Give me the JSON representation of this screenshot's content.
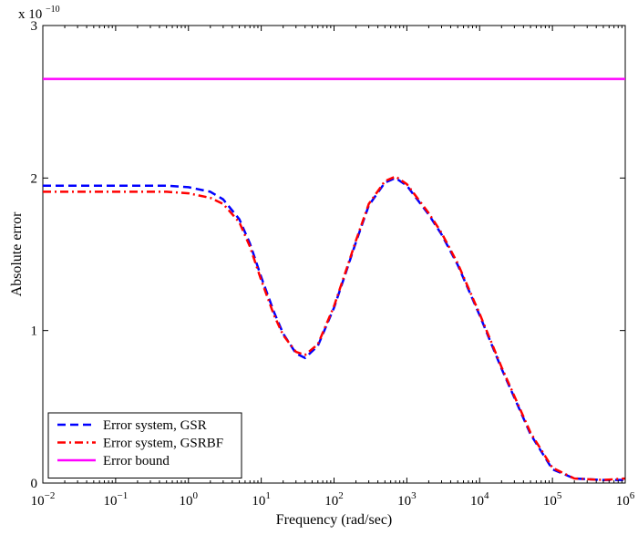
{
  "chart_data": {
    "type": "line",
    "xlabel": "Frequency (rad/sec)",
    "ylabel": "Absolute error",
    "y_multiplier_label": "x 10",
    "y_multiplier_exponent": "−10",
    "xscale": "log",
    "xlim": [
      0.01,
      1000000
    ],
    "ylim": [
      0,
      3
    ],
    "grid": false,
    "legend_position": "bottom-left",
    "x_ticks": [
      {
        "value": 0.01,
        "base": "10",
        "exp": "−2"
      },
      {
        "value": 0.1,
        "base": "10",
        "exp": "−1"
      },
      {
        "value": 1,
        "base": "10",
        "exp": "0"
      },
      {
        "value": 10,
        "base": "10",
        "exp": "1"
      },
      {
        "value": 100,
        "base": "10",
        "exp": "2"
      },
      {
        "value": 1000,
        "base": "10",
        "exp": "3"
      },
      {
        "value": 10000,
        "base": "10",
        "exp": "4"
      },
      {
        "value": 100000,
        "base": "10",
        "exp": "5"
      },
      {
        "value": 1000000,
        "base": "10",
        "exp": "6"
      }
    ],
    "y_ticks": [
      {
        "value": 0,
        "label": "0"
      },
      {
        "value": 1,
        "label": "1"
      },
      {
        "value": 2,
        "label": "2"
      },
      {
        "value": 3,
        "label": "3"
      }
    ],
    "series": [
      {
        "name": "Error system, GSR",
        "color": "#0000ff",
        "style": "dashed",
        "x": [
          0.01,
          0.1,
          0.5,
          1,
          2,
          3,
          5,
          7,
          10,
          15,
          20,
          30,
          40,
          60,
          100,
          150,
          200,
          300,
          500,
          700,
          1000,
          2000,
          3000,
          5000,
          10000,
          20000,
          50000,
          100000,
          200000,
          500000,
          1000000
        ],
        "y": [
          1.95,
          1.95,
          1.95,
          1.94,
          1.91,
          1.86,
          1.73,
          1.57,
          1.35,
          1.12,
          0.98,
          0.85,
          0.82,
          0.9,
          1.15,
          1.4,
          1.58,
          1.82,
          1.97,
          2.0,
          1.95,
          1.76,
          1.63,
          1.43,
          1.1,
          0.75,
          0.32,
          0.09,
          0.03,
          0.02,
          0.02
        ]
      },
      {
        "name": "Error system, GSRBF",
        "color": "#ff0000",
        "style": "dashdot",
        "x": [
          0.01,
          0.1,
          0.5,
          1,
          2,
          3,
          5,
          7,
          10,
          15,
          20,
          30,
          40,
          60,
          100,
          150,
          200,
          300,
          500,
          700,
          1000,
          2000,
          3000,
          5000,
          10000,
          20000,
          50000,
          100000,
          200000,
          500000,
          1000000
        ],
        "y": [
          1.91,
          1.91,
          1.91,
          1.9,
          1.87,
          1.83,
          1.71,
          1.55,
          1.33,
          1.1,
          0.97,
          0.86,
          0.84,
          0.91,
          1.16,
          1.41,
          1.59,
          1.83,
          1.98,
          2.01,
          1.96,
          1.77,
          1.64,
          1.44,
          1.11,
          0.76,
          0.33,
          0.1,
          0.03,
          0.02,
          0.03
        ]
      },
      {
        "name": "Error bound",
        "color": "#ff00ff",
        "style": "solid",
        "x": [
          0.01,
          1000000
        ],
        "y": [
          2.65,
          2.65
        ]
      }
    ]
  }
}
